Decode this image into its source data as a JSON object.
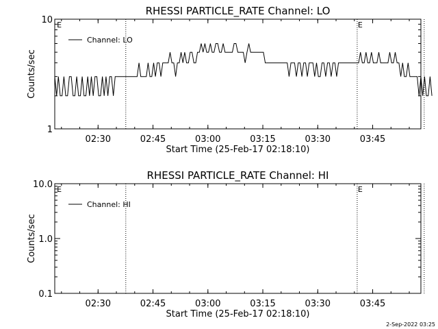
{
  "footer": {
    "timestamp": "2-Sep-2022 03:25"
  },
  "chart_data": [
    {
      "type": "line",
      "title": "RHESSI PARTICLE_RATE Channel: LO",
      "xlabel": "Start Time (25-Feb-17 02:18:10)",
      "ylabel": "Counts/sec",
      "yscale": "log",
      "ylim": [
        1,
        10
      ],
      "ytick_values": [
        1,
        10
      ],
      "ytick_labels": [
        "1",
        "10"
      ],
      "xlim_minutes": [
        0,
        100
      ],
      "xtick_minutes": [
        11.83,
        26.83,
        41.83,
        56.83,
        71.83,
        86.83
      ],
      "xtick_labels": [
        "02:30",
        "02:45",
        "03:00",
        "03:15",
        "03:30",
        "03:45"
      ],
      "grid": false,
      "legend_position": "top-left",
      "markers": [
        {
          "label": "E",
          "x_minute": 0.4,
          "line": false
        },
        {
          "label": "",
          "x_minute": 19.4,
          "line": true
        },
        {
          "label": "E",
          "x_minute": 82.6,
          "line": true
        },
        {
          "label": "",
          "x_minute": 100.9,
          "line": true
        }
      ],
      "series": [
        {
          "name": "Channel: LO",
          "sample_interval_minutes": 0.5,
          "values": [
            3,
            2,
            3,
            2,
            2,
            3,
            2,
            2,
            3,
            3,
            2,
            2,
            3,
            2,
            2,
            3,
            2,
            2,
            3,
            2,
            3,
            2,
            3,
            3,
            2,
            2,
            3,
            2,
            3,
            2,
            3,
            3,
            2,
            3,
            3,
            3,
            3,
            3,
            3,
            3,
            3,
            3,
            3,
            3,
            3,
            3,
            4,
            3,
            3,
            3,
            3,
            4,
            3,
            3,
            4,
            3,
            4,
            4,
            3,
            4,
            4,
            4,
            4,
            5,
            4,
            4,
            3,
            4,
            4,
            5,
            4,
            5,
            4,
            4,
            5,
            5,
            4,
            4,
            5,
            5,
            6,
            5,
            6,
            5,
            5,
            6,
            5,
            5,
            6,
            6,
            5,
            5,
            6,
            5,
            5,
            5,
            5,
            5,
            6,
            6,
            5,
            5,
            5,
            5,
            4,
            5,
            6,
            5,
            5,
            5,
            5,
            5,
            5,
            5,
            5,
            4,
            4,
            4,
            4,
            4,
            4,
            4,
            4,
            4,
            4,
            4,
            4,
            4,
            3,
            4,
            4,
            4,
            3,
            4,
            4,
            3,
            4,
            4,
            3,
            4,
            4,
            4,
            3,
            4,
            3,
            3,
            4,
            4,
            3,
            4,
            4,
            3,
            4,
            4,
            3,
            4,
            4,
            4,
            4,
            4,
            4,
            4,
            4,
            4,
            4,
            4,
            4,
            5,
            4,
            4,
            5,
            4,
            4,
            5,
            4,
            4,
            4,
            5,
            4,
            4,
            4,
            4,
            4,
            5,
            4,
            4,
            5,
            4,
            4,
            3,
            4,
            3,
            3,
            4,
            3,
            3,
            3,
            3,
            3,
            2,
            3,
            2,
            3,
            2,
            2,
            3,
            2
          ]
        }
      ]
    },
    {
      "type": "line",
      "title": "RHESSI PARTICLE_RATE Channel: HI",
      "xlabel": "Start Time (25-Feb-17 02:18:10)",
      "ylabel": "Counts/sec",
      "yscale": "log",
      "ylim": [
        0.1,
        10
      ],
      "ytick_values": [
        0.1,
        1,
        10
      ],
      "ytick_labels": [
        "0.1",
        "1.0",
        "10.0"
      ],
      "xlim_minutes": [
        0,
        100
      ],
      "xtick_minutes": [
        11.83,
        26.83,
        41.83,
        56.83,
        71.83,
        86.83
      ],
      "xtick_labels": [
        "02:30",
        "02:45",
        "03:00",
        "03:15",
        "03:30",
        "03:45"
      ],
      "grid": false,
      "legend_position": "top-left",
      "markers": [
        {
          "label": "E",
          "x_minute": 0.4,
          "line": false
        },
        {
          "label": "",
          "x_minute": 19.4,
          "line": true
        },
        {
          "label": "E",
          "x_minute": 82.6,
          "line": true
        },
        {
          "label": "",
          "x_minute": 100.9,
          "line": true
        }
      ],
      "series": [
        {
          "name": "Channel: HI",
          "sample_interval_minutes": 0.5,
          "values": []
        }
      ]
    }
  ]
}
